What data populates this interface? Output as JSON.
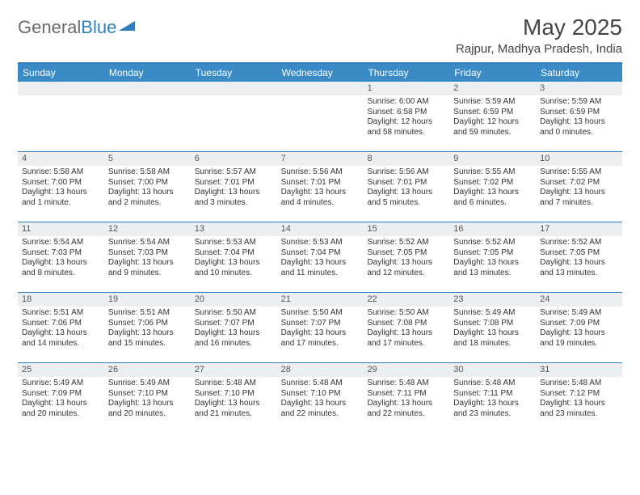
{
  "logo": {
    "text1": "General",
    "text2": "Blue"
  },
  "title": "May 2025",
  "location": "Rajpur, Madhya Pradesh, India",
  "colors": {
    "header_bar": "#3a8ac5",
    "rule": "#2f7fbf",
    "daynum_bg": "#eceef0",
    "text": "#333333",
    "logo_gray": "#6b6b6b"
  },
  "fonts": {
    "title_size": 28,
    "location_size": 15,
    "dow_size": 12,
    "body_size": 10
  },
  "days_of_week": [
    "Sunday",
    "Monday",
    "Tuesday",
    "Wednesday",
    "Thursday",
    "Friday",
    "Saturday"
  ],
  "weeks": [
    [
      {
        "n": "",
        "lines": []
      },
      {
        "n": "",
        "lines": []
      },
      {
        "n": "",
        "lines": []
      },
      {
        "n": "",
        "lines": []
      },
      {
        "n": "1",
        "lines": [
          "Sunrise: 6:00 AM",
          "Sunset: 6:58 PM",
          "Daylight: 12 hours",
          "and 58 minutes."
        ]
      },
      {
        "n": "2",
        "lines": [
          "Sunrise: 5:59 AM",
          "Sunset: 6:59 PM",
          "Daylight: 12 hours",
          "and 59 minutes."
        ]
      },
      {
        "n": "3",
        "lines": [
          "Sunrise: 5:59 AM",
          "Sunset: 6:59 PM",
          "Daylight: 13 hours",
          "and 0 minutes."
        ]
      }
    ],
    [
      {
        "n": "4",
        "lines": [
          "Sunrise: 5:58 AM",
          "Sunset: 7:00 PM",
          "Daylight: 13 hours",
          "and 1 minute."
        ]
      },
      {
        "n": "5",
        "lines": [
          "Sunrise: 5:58 AM",
          "Sunset: 7:00 PM",
          "Daylight: 13 hours",
          "and 2 minutes."
        ]
      },
      {
        "n": "6",
        "lines": [
          "Sunrise: 5:57 AM",
          "Sunset: 7:01 PM",
          "Daylight: 13 hours",
          "and 3 minutes."
        ]
      },
      {
        "n": "7",
        "lines": [
          "Sunrise: 5:56 AM",
          "Sunset: 7:01 PM",
          "Daylight: 13 hours",
          "and 4 minutes."
        ]
      },
      {
        "n": "8",
        "lines": [
          "Sunrise: 5:56 AM",
          "Sunset: 7:01 PM",
          "Daylight: 13 hours",
          "and 5 minutes."
        ]
      },
      {
        "n": "9",
        "lines": [
          "Sunrise: 5:55 AM",
          "Sunset: 7:02 PM",
          "Daylight: 13 hours",
          "and 6 minutes."
        ]
      },
      {
        "n": "10",
        "lines": [
          "Sunrise: 5:55 AM",
          "Sunset: 7:02 PM",
          "Daylight: 13 hours",
          "and 7 minutes."
        ]
      }
    ],
    [
      {
        "n": "11",
        "lines": [
          "Sunrise: 5:54 AM",
          "Sunset: 7:03 PM",
          "Daylight: 13 hours",
          "and 8 minutes."
        ]
      },
      {
        "n": "12",
        "lines": [
          "Sunrise: 5:54 AM",
          "Sunset: 7:03 PM",
          "Daylight: 13 hours",
          "and 9 minutes."
        ]
      },
      {
        "n": "13",
        "lines": [
          "Sunrise: 5:53 AM",
          "Sunset: 7:04 PM",
          "Daylight: 13 hours",
          "and 10 minutes."
        ]
      },
      {
        "n": "14",
        "lines": [
          "Sunrise: 5:53 AM",
          "Sunset: 7:04 PM",
          "Daylight: 13 hours",
          "and 11 minutes."
        ]
      },
      {
        "n": "15",
        "lines": [
          "Sunrise: 5:52 AM",
          "Sunset: 7:05 PM",
          "Daylight: 13 hours",
          "and 12 minutes."
        ]
      },
      {
        "n": "16",
        "lines": [
          "Sunrise: 5:52 AM",
          "Sunset: 7:05 PM",
          "Daylight: 13 hours",
          "and 13 minutes."
        ]
      },
      {
        "n": "17",
        "lines": [
          "Sunrise: 5:52 AM",
          "Sunset: 7:05 PM",
          "Daylight: 13 hours",
          "and 13 minutes."
        ]
      }
    ],
    [
      {
        "n": "18",
        "lines": [
          "Sunrise: 5:51 AM",
          "Sunset: 7:06 PM",
          "Daylight: 13 hours",
          "and 14 minutes."
        ]
      },
      {
        "n": "19",
        "lines": [
          "Sunrise: 5:51 AM",
          "Sunset: 7:06 PM",
          "Daylight: 13 hours",
          "and 15 minutes."
        ]
      },
      {
        "n": "20",
        "lines": [
          "Sunrise: 5:50 AM",
          "Sunset: 7:07 PM",
          "Daylight: 13 hours",
          "and 16 minutes."
        ]
      },
      {
        "n": "21",
        "lines": [
          "Sunrise: 5:50 AM",
          "Sunset: 7:07 PM",
          "Daylight: 13 hours",
          "and 17 minutes."
        ]
      },
      {
        "n": "22",
        "lines": [
          "Sunrise: 5:50 AM",
          "Sunset: 7:08 PM",
          "Daylight: 13 hours",
          "and 17 minutes."
        ]
      },
      {
        "n": "23",
        "lines": [
          "Sunrise: 5:49 AM",
          "Sunset: 7:08 PM",
          "Daylight: 13 hours",
          "and 18 minutes."
        ]
      },
      {
        "n": "24",
        "lines": [
          "Sunrise: 5:49 AM",
          "Sunset: 7:09 PM",
          "Daylight: 13 hours",
          "and 19 minutes."
        ]
      }
    ],
    [
      {
        "n": "25",
        "lines": [
          "Sunrise: 5:49 AM",
          "Sunset: 7:09 PM",
          "Daylight: 13 hours",
          "and 20 minutes."
        ]
      },
      {
        "n": "26",
        "lines": [
          "Sunrise: 5:49 AM",
          "Sunset: 7:10 PM",
          "Daylight: 13 hours",
          "and 20 minutes."
        ]
      },
      {
        "n": "27",
        "lines": [
          "Sunrise: 5:48 AM",
          "Sunset: 7:10 PM",
          "Daylight: 13 hours",
          "and 21 minutes."
        ]
      },
      {
        "n": "28",
        "lines": [
          "Sunrise: 5:48 AM",
          "Sunset: 7:10 PM",
          "Daylight: 13 hours",
          "and 22 minutes."
        ]
      },
      {
        "n": "29",
        "lines": [
          "Sunrise: 5:48 AM",
          "Sunset: 7:11 PM",
          "Daylight: 13 hours",
          "and 22 minutes."
        ]
      },
      {
        "n": "30",
        "lines": [
          "Sunrise: 5:48 AM",
          "Sunset: 7:11 PM",
          "Daylight: 13 hours",
          "and 23 minutes."
        ]
      },
      {
        "n": "31",
        "lines": [
          "Sunrise: 5:48 AM",
          "Sunset: 7:12 PM",
          "Daylight: 13 hours",
          "and 23 minutes."
        ]
      }
    ]
  ]
}
